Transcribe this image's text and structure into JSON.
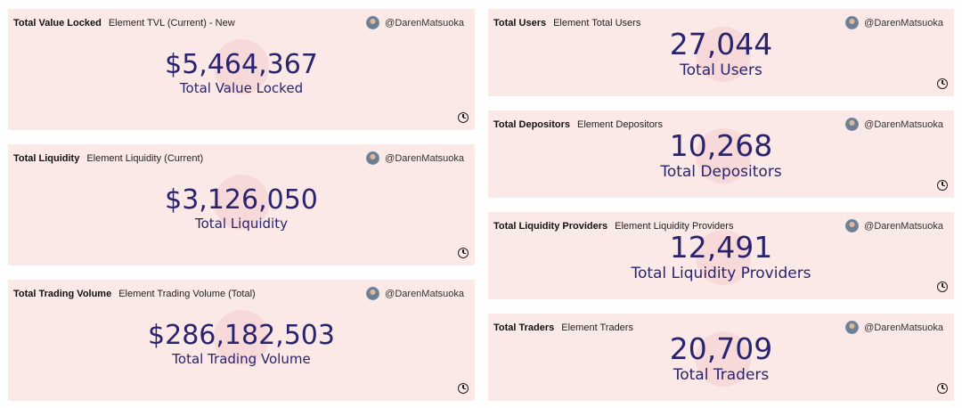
{
  "author": "@DarenMatsuoka",
  "cards": [
    {
      "title": "Total Value Locked",
      "subtitle": "Element TVL (Current) - New",
      "value": "$5,464,367",
      "label": "Total Value Locked"
    },
    {
      "title": "Total Liquidity",
      "subtitle": "Element Liquidity (Current)",
      "value": "$3,126,050",
      "label": "Total Liquidity"
    },
    {
      "title": "Total Trading Volume",
      "subtitle": "Element Trading Volume (Total)",
      "value": "$286,182,503",
      "label": "Total Trading Volume"
    },
    {
      "title": "Total Users",
      "subtitle": "Element Total Users",
      "value": "27,044",
      "label": "Total Users"
    },
    {
      "title": "Total Depositors",
      "subtitle": "Element Depositors",
      "value": "10,268",
      "label": "Total Depositors"
    },
    {
      "title": "Total Liquidity Providers",
      "subtitle": "Element Liquidity Providers",
      "value": "12,491",
      "label": "Total Liquidity Providers"
    },
    {
      "title": "Total Traders",
      "subtitle": "Element Traders",
      "value": "20,709",
      "label": "Total Traders"
    }
  ],
  "colors": {
    "card_bg": "#fbe9e7",
    "number": "#2a236e",
    "blob": "#f6d9d8"
  },
  "icons": {
    "avatar": "user-avatar",
    "refresh": "clock-icon"
  }
}
